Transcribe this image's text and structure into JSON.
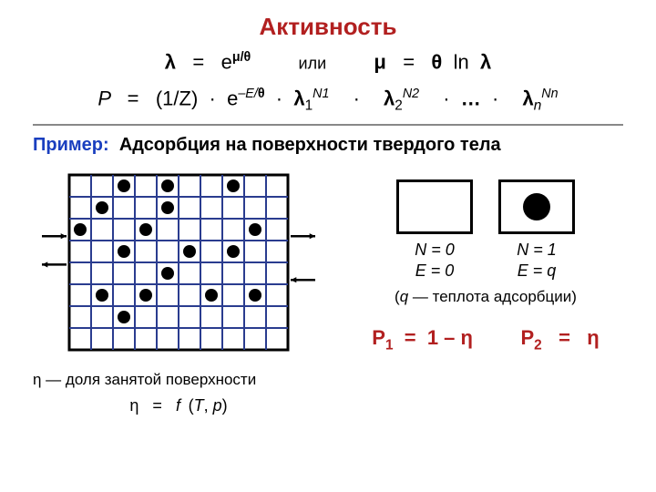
{
  "colors": {
    "title": "#b22020",
    "example_label": "#1a3fbf",
    "example_text": "#000000",
    "p_color": "#b22020",
    "grid_line": "#2a3c8f",
    "grid_border": "#000000",
    "dot": "#000000",
    "arrow": "#000000",
    "bg": "#ffffff",
    "rule": "#888888"
  },
  "title": "Активность",
  "eq1_lhs": "λ",
  "eq1_eq": "=",
  "eq1_base": "e",
  "eq1_exp": "μ/θ",
  "or_word": "или",
  "eq1b_lhs": "μ",
  "eq1b_eq": "=",
  "eq1b_rhs_a": "θ",
  "eq1b_rhs_b": "ln",
  "eq1b_rhs_c": "λ",
  "eq2_P": "P",
  "eq2_eq": "=",
  "eq2_inv": "(1/Z)",
  "eq2_dot": "·",
  "eq2_e": "e",
  "eq2_exp": "–E/θ",
  "eq2_lam": "λ",
  "eq2_sub1": "1",
  "eq2_sup1": "N1",
  "eq2_sub2": "2",
  "eq2_sup2": "N2",
  "eq2_subn": "n",
  "eq2_supn": "Nn",
  "eq2_ellipsis": "…",
  "example_label": "Пример:",
  "example_text": "Адсорбция на поверхности твердого тела",
  "grid": {
    "cols": 10,
    "rows": 8,
    "cell": 24,
    "line_width": 2,
    "border_width": 3,
    "occupied": [
      [
        0,
        2
      ],
      [
        0,
        4
      ],
      [
        0,
        7
      ],
      [
        1,
        1
      ],
      [
        1,
        4
      ],
      [
        2,
        0
      ],
      [
        2,
        3
      ],
      [
        2,
        8
      ],
      [
        3,
        2
      ],
      [
        3,
        5
      ],
      [
        3,
        7
      ],
      [
        4,
        4
      ],
      [
        5,
        1
      ],
      [
        5,
        3
      ],
      [
        5,
        6
      ],
      [
        5,
        8
      ],
      [
        6,
        2
      ]
    ],
    "dot_radius": 7,
    "arrows": [
      {
        "side": "left",
        "row": 2.3,
        "dir": "in"
      },
      {
        "side": "left",
        "row": 3.6,
        "dir": "out"
      },
      {
        "side": "right",
        "row": 2.3,
        "dir": "out"
      },
      {
        "side": "right",
        "row": 4.3,
        "dir": "in"
      }
    ]
  },
  "cells": {
    "left": {
      "N": "N = 0",
      "E": "E = 0"
    },
    "right": {
      "N": "N = 1",
      "E": "E = q"
    }
  },
  "q_note_a": "(",
  "q_note_q": "q",
  "q_note_b": " — теплота адсорбции)",
  "eta_note_a": "η — доля занятой поверхности",
  "eta_eq_a": "η",
  "eta_eq_eq": "=",
  "eta_eq_f": "f",
  "eta_eq_paren": "(",
  "eta_eq_T": "T",
  "eta_eq_comma": ", ",
  "eta_eq_p": "p",
  "eta_eq_close": ")",
  "P1_label": "P",
  "P1_sub": "1",
  "P1_eq": "=",
  "P1_rhs_a": "1 – η",
  "P2_label": "P",
  "P2_sub": "2",
  "P2_eq": "=",
  "P2_rhs": "η",
  "typography": {
    "title_fontsize": 26,
    "eq_fontsize": 22,
    "body_fontsize": 18
  }
}
